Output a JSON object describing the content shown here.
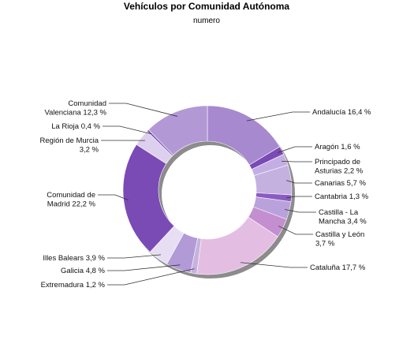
{
  "chart_data": {
    "type": "pie",
    "variant": "donut",
    "title": "Vehículos por Comunidad Autónoma",
    "subtitle": "numero",
    "start_angle_deg": 0,
    "direction": "clockwise",
    "slices": [
      {
        "label_lines": [
          "Andalucía 16,4 %"
        ],
        "value": 16.4,
        "color": "#a689ce"
      },
      {
        "label_lines": [
          "Aragón 1,6 %"
        ],
        "value": 1.6,
        "color": "#7a4ab5"
      },
      {
        "label_lines": [
          "Principado de",
          "Asturias 2,2 %"
        ],
        "value": 2.2,
        "color": "#c3aee3"
      },
      {
        "label_lines": [
          "Canarias 5,7 %"
        ],
        "value": 5.7,
        "color": "#c4b1e0"
      },
      {
        "label_lines": [
          "Cantabria 1,3 %"
        ],
        "value": 1.3,
        "color": "#8a5bc2"
      },
      {
        "label_lines": [
          "Castilla - La",
          "Mancha 3,4 %"
        ],
        "value": 3.4,
        "color": "#b9a2db"
      },
      {
        "label_lines": [
          "Castilla y León",
          "3,7 %"
        ],
        "value": 3.7,
        "color": "#c48fd0"
      },
      {
        "label_lines": [
          "Cataluña 17,7 %"
        ],
        "value": 17.7,
        "color": "#e4bde3"
      },
      {
        "label_lines": [
          "Extremadura 1,2 %"
        ],
        "value": 1.2,
        "color": "#c6b2df"
      },
      {
        "label_lines": [
          "Galicia 4,8 %"
        ],
        "value": 4.8,
        "color": "#b29ad7"
      },
      {
        "label_lines": [
          "Illes Balears 3,9 %"
        ],
        "value": 3.9,
        "color": "#e8def3"
      },
      {
        "label_lines": [
          "Comunidad de",
          "Madrid 22,2 %"
        ],
        "value": 22.2,
        "color": "#7a4ab5"
      },
      {
        "label_lines": [
          "Región de Murcia",
          "3,2 %"
        ],
        "value": 3.2,
        "color": "#ddd0ee"
      },
      {
        "label_lines": [
          "La Rioja 0,4 %"
        ],
        "value": 0.4,
        "color": "#7e56b8"
      },
      {
        "label_lines": [
          "Comunidad",
          "Valenciana 12,3 %"
        ],
        "value": 12.3,
        "color": "#b398d6"
      }
    ]
  }
}
